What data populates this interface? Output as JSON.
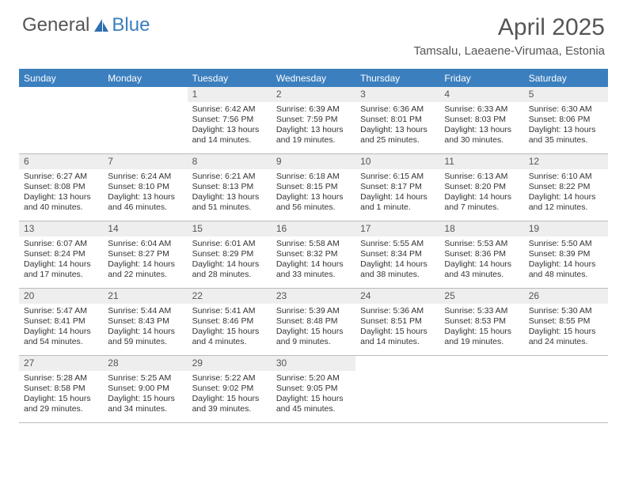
{
  "logo": {
    "text1": "General",
    "text2": "Blue"
  },
  "title": "April 2025",
  "location": "Tamsalu, Laeaene-Virumaa, Estonia",
  "colors": {
    "header_bg": "#3b7fbf",
    "header_text": "#ffffff",
    "daynum_bg": "#eeeeee",
    "text": "#333333",
    "border": "#bbbbbb"
  },
  "day_names": [
    "Sunday",
    "Monday",
    "Tuesday",
    "Wednesday",
    "Thursday",
    "Friday",
    "Saturday"
  ],
  "weeks": [
    [
      {
        "n": "",
        "empty": true
      },
      {
        "n": "",
        "empty": true
      },
      {
        "n": "1",
        "sunrise": "6:42 AM",
        "sunset": "7:56 PM",
        "daylight": "13 hours and 14 minutes."
      },
      {
        "n": "2",
        "sunrise": "6:39 AM",
        "sunset": "7:59 PM",
        "daylight": "13 hours and 19 minutes."
      },
      {
        "n": "3",
        "sunrise": "6:36 AM",
        "sunset": "8:01 PM",
        "daylight": "13 hours and 25 minutes."
      },
      {
        "n": "4",
        "sunrise": "6:33 AM",
        "sunset": "8:03 PM",
        "daylight": "13 hours and 30 minutes."
      },
      {
        "n": "5",
        "sunrise": "6:30 AM",
        "sunset": "8:06 PM",
        "daylight": "13 hours and 35 minutes."
      }
    ],
    [
      {
        "n": "6",
        "sunrise": "6:27 AM",
        "sunset": "8:08 PM",
        "daylight": "13 hours and 40 minutes."
      },
      {
        "n": "7",
        "sunrise": "6:24 AM",
        "sunset": "8:10 PM",
        "daylight": "13 hours and 46 minutes."
      },
      {
        "n": "8",
        "sunrise": "6:21 AM",
        "sunset": "8:13 PM",
        "daylight": "13 hours and 51 minutes."
      },
      {
        "n": "9",
        "sunrise": "6:18 AM",
        "sunset": "8:15 PM",
        "daylight": "13 hours and 56 minutes."
      },
      {
        "n": "10",
        "sunrise": "6:15 AM",
        "sunset": "8:17 PM",
        "daylight": "14 hours and 1 minute."
      },
      {
        "n": "11",
        "sunrise": "6:13 AM",
        "sunset": "8:20 PM",
        "daylight": "14 hours and 7 minutes."
      },
      {
        "n": "12",
        "sunrise": "6:10 AM",
        "sunset": "8:22 PM",
        "daylight": "14 hours and 12 minutes."
      }
    ],
    [
      {
        "n": "13",
        "sunrise": "6:07 AM",
        "sunset": "8:24 PM",
        "daylight": "14 hours and 17 minutes."
      },
      {
        "n": "14",
        "sunrise": "6:04 AM",
        "sunset": "8:27 PM",
        "daylight": "14 hours and 22 minutes."
      },
      {
        "n": "15",
        "sunrise": "6:01 AM",
        "sunset": "8:29 PM",
        "daylight": "14 hours and 28 minutes."
      },
      {
        "n": "16",
        "sunrise": "5:58 AM",
        "sunset": "8:32 PM",
        "daylight": "14 hours and 33 minutes."
      },
      {
        "n": "17",
        "sunrise": "5:55 AM",
        "sunset": "8:34 PM",
        "daylight": "14 hours and 38 minutes."
      },
      {
        "n": "18",
        "sunrise": "5:53 AM",
        "sunset": "8:36 PM",
        "daylight": "14 hours and 43 minutes."
      },
      {
        "n": "19",
        "sunrise": "5:50 AM",
        "sunset": "8:39 PM",
        "daylight": "14 hours and 48 minutes."
      }
    ],
    [
      {
        "n": "20",
        "sunrise": "5:47 AM",
        "sunset": "8:41 PM",
        "daylight": "14 hours and 54 minutes."
      },
      {
        "n": "21",
        "sunrise": "5:44 AM",
        "sunset": "8:43 PM",
        "daylight": "14 hours and 59 minutes."
      },
      {
        "n": "22",
        "sunrise": "5:41 AM",
        "sunset": "8:46 PM",
        "daylight": "15 hours and 4 minutes."
      },
      {
        "n": "23",
        "sunrise": "5:39 AM",
        "sunset": "8:48 PM",
        "daylight": "15 hours and 9 minutes."
      },
      {
        "n": "24",
        "sunrise": "5:36 AM",
        "sunset": "8:51 PM",
        "daylight": "15 hours and 14 minutes."
      },
      {
        "n": "25",
        "sunrise": "5:33 AM",
        "sunset": "8:53 PM",
        "daylight": "15 hours and 19 minutes."
      },
      {
        "n": "26",
        "sunrise": "5:30 AM",
        "sunset": "8:55 PM",
        "daylight": "15 hours and 24 minutes."
      }
    ],
    [
      {
        "n": "27",
        "sunrise": "5:28 AM",
        "sunset": "8:58 PM",
        "daylight": "15 hours and 29 minutes."
      },
      {
        "n": "28",
        "sunrise": "5:25 AM",
        "sunset": "9:00 PM",
        "daylight": "15 hours and 34 minutes."
      },
      {
        "n": "29",
        "sunrise": "5:22 AM",
        "sunset": "9:02 PM",
        "daylight": "15 hours and 39 minutes."
      },
      {
        "n": "30",
        "sunrise": "5:20 AM",
        "sunset": "9:05 PM",
        "daylight": "15 hours and 45 minutes."
      },
      {
        "n": "",
        "empty": true
      },
      {
        "n": "",
        "empty": true
      },
      {
        "n": "",
        "empty": true
      }
    ]
  ],
  "labels": {
    "sunrise": "Sunrise:",
    "sunset": "Sunset:",
    "daylight": "Daylight:"
  }
}
